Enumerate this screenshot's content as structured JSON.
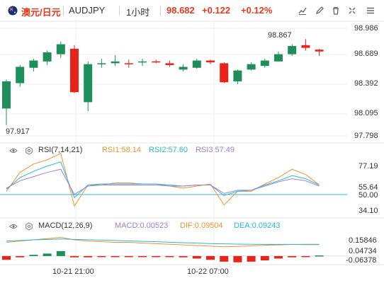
{
  "header": {
    "symbol_cn": "澳元/日元",
    "symbol_code": "AUDJPY",
    "period": "1小时",
    "price": "98.682",
    "change": "+0.122",
    "change_pct": "+0.12%",
    "tools": [
      "draw-trend-icon",
      "pencil-icon",
      "delete-icon",
      "settings-icon",
      "fullscreen-icon",
      "menu-icon"
    ]
  },
  "main_chart": {
    "y_labels": [
      "98.986",
      "98.689",
      "98.392",
      "98.095",
      "97.798"
    ],
    "high_label": "98.867",
    "low_label": "97.917"
  },
  "rsi": {
    "title": "RSI(7,14,21)",
    "rsi1": "RSI1:58.14",
    "rsi2": "RSI2:57.60",
    "rsi3": "RSI3:57.49",
    "y_labels": [
      "77.19",
      "55.64",
      "50.00",
      "34.10"
    ]
  },
  "macd": {
    "title": "MACD(12,26,9)",
    "macd": "MACD:0.00523",
    "dif": "DIF:0.09504",
    "dea": "DEA:0.09243",
    "y_labels": [
      "0.15846",
      "0.04734",
      "-0.06378"
    ]
  },
  "time_axis": {
    "labels": [
      "10-21 21:00",
      "10-22 07:00"
    ]
  },
  "colors": {
    "up": "#1e8f5a",
    "down": "#e8231a",
    "accent": "#e8391d",
    "rsi1": "#f0922e",
    "rsi2": "#2bb8d2",
    "rsi3": "#9a7fd6",
    "dif": "#f0922e",
    "dea": "#2bb8d2",
    "grid": "#eeeeee",
    "baseline": "#33b5d8"
  },
  "chart_data": {
    "type": "candlestick",
    "timeframe": "1H",
    "x_labels": [
      "10-21 21:00",
      "10-22 07:00"
    ],
    "y_range": [
      97.798,
      98.986
    ],
    "candles": [
      {
        "o": 98.1,
        "h": 98.42,
        "l": 97.917,
        "c": 98.4
      },
      {
        "o": 98.38,
        "h": 98.58,
        "l": 98.34,
        "c": 98.56
      },
      {
        "o": 98.55,
        "h": 98.65,
        "l": 98.51,
        "c": 98.63
      },
      {
        "o": 98.62,
        "h": 98.74,
        "l": 98.58,
        "c": 98.72
      },
      {
        "o": 98.7,
        "h": 98.84,
        "l": 98.66,
        "c": 98.81
      },
      {
        "o": 98.76,
        "h": 98.8,
        "l": 98.27,
        "c": 98.28
      },
      {
        "o": 98.17,
        "h": 98.62,
        "l": 98.07,
        "c": 98.59
      },
      {
        "o": 98.59,
        "h": 98.65,
        "l": 98.55,
        "c": 98.6
      },
      {
        "o": 98.6,
        "h": 98.69,
        "l": 98.57,
        "c": 98.62
      },
      {
        "o": 98.6,
        "h": 98.64,
        "l": 98.55,
        "c": 98.59
      },
      {
        "o": 98.61,
        "h": 98.65,
        "l": 98.57,
        "c": 98.62
      },
      {
        "o": 98.62,
        "h": 98.64,
        "l": 98.6,
        "c": 98.61
      },
      {
        "o": 98.6,
        "h": 98.63,
        "l": 98.56,
        "c": 98.58
      },
      {
        "o": 98.53,
        "h": 98.59,
        "l": 98.51,
        "c": 98.56
      },
      {
        "o": 98.55,
        "h": 98.65,
        "l": 98.54,
        "c": 98.63
      },
      {
        "o": 98.63,
        "h": 98.64,
        "l": 98.59,
        "c": 98.61
      },
      {
        "o": 98.6,
        "h": 98.61,
        "l": 98.38,
        "c": 98.39
      },
      {
        "o": 98.4,
        "h": 98.53,
        "l": 98.37,
        "c": 98.52
      },
      {
        "o": 98.53,
        "h": 98.61,
        "l": 98.52,
        "c": 98.59
      },
      {
        "o": 98.57,
        "h": 98.65,
        "l": 98.55,
        "c": 98.63
      },
      {
        "o": 98.62,
        "h": 98.73,
        "l": 98.62,
        "c": 98.7
      },
      {
        "o": 98.7,
        "h": 98.81,
        "l": 98.68,
        "c": 98.79
      },
      {
        "o": 98.8,
        "h": 98.867,
        "l": 98.74,
        "c": 98.77
      },
      {
        "o": 98.75,
        "h": 98.76,
        "l": 98.68,
        "c": 98.73
      }
    ],
    "rsi": {
      "range": [
        34.1,
        77.19
      ],
      "rsi1": [
        52,
        70,
        78,
        82,
        88,
        38,
        58,
        58,
        60,
        60,
        59,
        59,
        57,
        55,
        57,
        59,
        39,
        52,
        52,
        59,
        65,
        73,
        68,
        58
      ],
      "rsi2": [
        54,
        65,
        71,
        76,
        80,
        46,
        58,
        59,
        59,
        59,
        59,
        59,
        58,
        57,
        58,
        58,
        48,
        52,
        53,
        58,
        62,
        67,
        64,
        58
      ],
      "rsi3": [
        55,
        62,
        66,
        70,
        73,
        49,
        57,
        58,
        58,
        58,
        58,
        58,
        57,
        57,
        58,
        58,
        50,
        53,
        53,
        57,
        61,
        64,
        62,
        57
      ]
    },
    "macd": {
      "range": [
        -0.08,
        0.17
      ],
      "hist": [
        -0.03,
        -0.01,
        0.01,
        0.02,
        0.04,
        -0.01,
        -0.01,
        -0.005,
        -0.005,
        -0.005,
        -0.003,
        -0.003,
        -0.005,
        -0.01,
        -0.02,
        -0.03,
        -0.045,
        -0.05,
        -0.045,
        -0.035,
        -0.02,
        -0.01,
        -0.003,
        0.005
      ],
      "dif": [
        0.11,
        0.12,
        0.13,
        0.14,
        0.15,
        0.13,
        0.12,
        0.115,
        0.11,
        0.11,
        0.105,
        0.1,
        0.095,
        0.09,
        0.085,
        0.08,
        0.075,
        0.078,
        0.082,
        0.087,
        0.09,
        0.093,
        0.095,
        0.095
      ],
      "dea": [
        0.12,
        0.125,
        0.13,
        0.133,
        0.137,
        0.134,
        0.131,
        0.128,
        0.125,
        0.122,
        0.118,
        0.115,
        0.111,
        0.107,
        0.104,
        0.1,
        0.098,
        0.096,
        0.095,
        0.094,
        0.093,
        0.093,
        0.092,
        0.092
      ]
    }
  }
}
